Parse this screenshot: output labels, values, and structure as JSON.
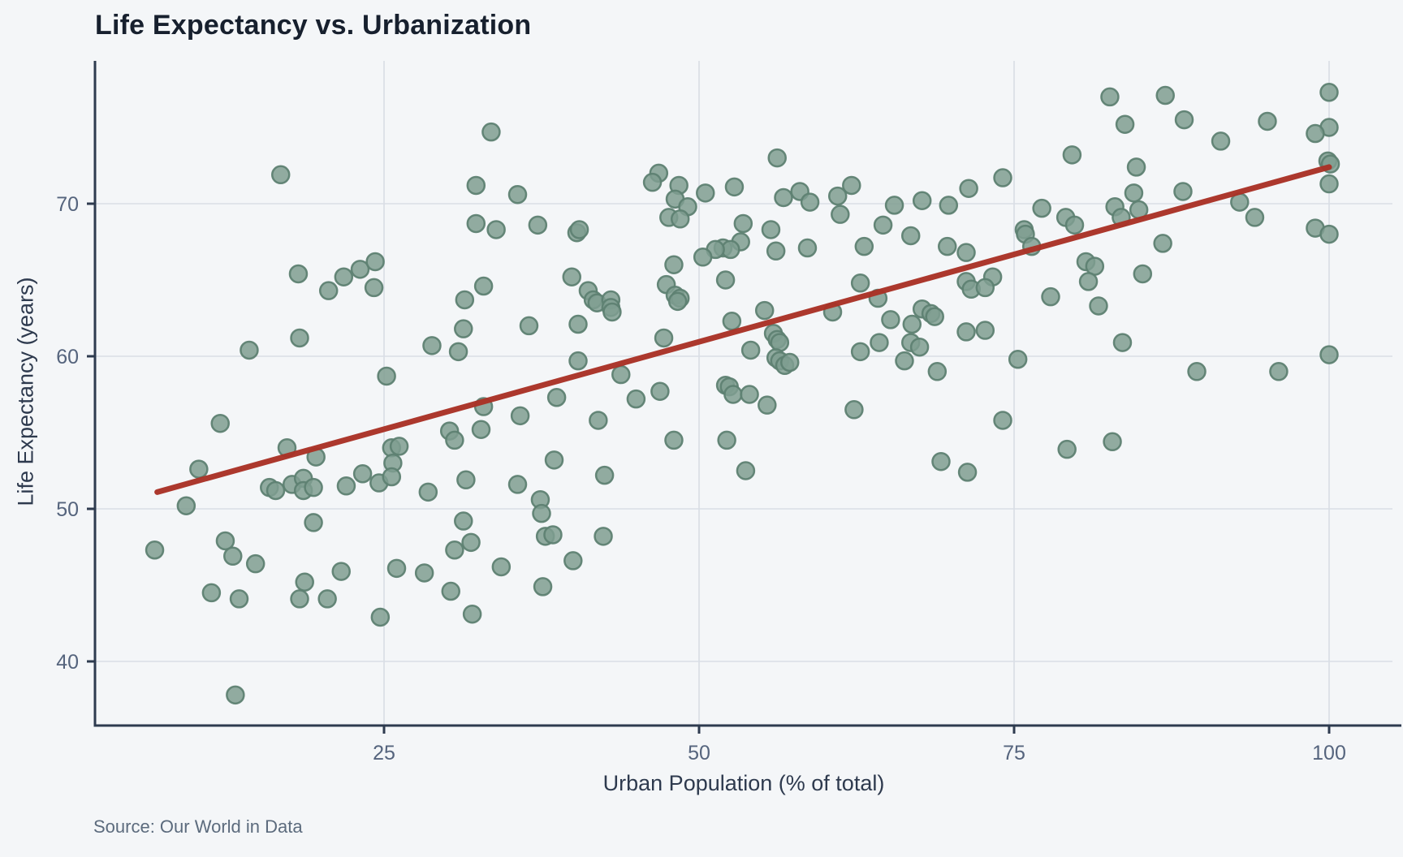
{
  "header": {
    "title": "Life Expectancy vs. Urbanization"
  },
  "footer": {
    "source": "Source: Our World in Data"
  },
  "chart_data": {
    "type": "scatter",
    "title": "Life Expectancy vs. Urbanization",
    "xlabel": "Urban Population (% of total)",
    "ylabel": "Life Expectancy (years)",
    "source": "Source: Our World in Data",
    "x_ticks": [
      25,
      50,
      75,
      100
    ],
    "y_ticks": [
      40,
      50,
      60,
      70
    ],
    "xlim": [
      2,
      104.5
    ],
    "ylim": [
      35.5,
      79.5
    ],
    "grid": true,
    "legend": false,
    "colors": {
      "background": "#f4f6f8",
      "grid": "#d9dee5",
      "axis": "#2e3b4f",
      "tick_label": "#55647d",
      "axis_label": "#2e3a4e",
      "title": "#17202e",
      "source": "#5c6b7d",
      "point_fill": "#7f9e90",
      "point_stroke": "#5e8172",
      "trend": "#a93226"
    },
    "trend_line": {
      "x1": 7.0,
      "y1": 51.1,
      "x2": 100.0,
      "y2": 72.4
    },
    "points": [
      [
        16.8,
        71.9
      ],
      [
        33.5,
        74.7
      ],
      [
        32.3,
        71.2
      ],
      [
        35.6,
        70.6
      ],
      [
        32.3,
        68.7
      ],
      [
        33.9,
        68.3
      ],
      [
        18.2,
        65.4
      ],
      [
        21.8,
        65.2
      ],
      [
        23.1,
        65.7
      ],
      [
        24.3,
        66.2
      ],
      [
        20.6,
        64.3
      ],
      [
        24.2,
        64.5
      ],
      [
        32.9,
        64.6
      ],
      [
        31.4,
        63.7
      ],
      [
        31.3,
        61.8
      ],
      [
        18.3,
        61.2
      ],
      [
        28.8,
        60.7
      ],
      [
        14.3,
        60.4
      ],
      [
        30.9,
        60.3
      ],
      [
        25.2,
        58.7
      ],
      [
        56.2,
        73.0
      ],
      [
        46.8,
        72.0
      ],
      [
        46.3,
        71.4
      ],
      [
        48.4,
        71.2
      ],
      [
        52.8,
        71.1
      ],
      [
        50.5,
        70.7
      ],
      [
        48.1,
        70.3
      ],
      [
        58.0,
        70.8
      ],
      [
        56.7,
        70.4
      ],
      [
        62.1,
        71.2
      ],
      [
        61.0,
        70.5
      ],
      [
        58.8,
        70.1
      ],
      [
        65.5,
        69.9
      ],
      [
        67.7,
        70.2
      ],
      [
        69.8,
        69.9
      ],
      [
        49.1,
        69.8
      ],
      [
        47.6,
        69.1
      ],
      [
        48.5,
        69.0
      ],
      [
        61.2,
        69.3
      ],
      [
        37.2,
        68.6
      ],
      [
        40.3,
        68.1
      ],
      [
        40.5,
        68.3
      ],
      [
        53.5,
        68.7
      ],
      [
        64.6,
        68.6
      ],
      [
        55.7,
        68.3
      ],
      [
        63.1,
        67.2
      ],
      [
        66.8,
        67.9
      ],
      [
        69.7,
        67.2
      ],
      [
        53.3,
        67.5
      ],
      [
        51.9,
        67.1
      ],
      [
        52.5,
        67.0
      ],
      [
        51.3,
        67.0
      ],
      [
        50.3,
        66.5
      ],
      [
        48.0,
        66.0
      ],
      [
        58.6,
        67.1
      ],
      [
        56.1,
        66.9
      ],
      [
        52.1,
        65.0
      ],
      [
        39.9,
        65.2
      ],
      [
        62.8,
        64.8
      ],
      [
        47.4,
        64.7
      ],
      [
        48.1,
        64.0
      ],
      [
        48.5,
        63.8
      ],
      [
        48.3,
        63.6
      ],
      [
        41.2,
        64.3
      ],
      [
        41.6,
        63.7
      ],
      [
        41.9,
        63.5
      ],
      [
        43.0,
        63.7
      ],
      [
        43.0,
        63.2
      ],
      [
        43.1,
        62.9
      ],
      [
        40.4,
        62.1
      ],
      [
        36.5,
        62.0
      ],
      [
        55.2,
        63.0
      ],
      [
        60.6,
        62.9
      ],
      [
        64.2,
        63.8
      ],
      [
        52.6,
        62.3
      ],
      [
        65.2,
        62.4
      ],
      [
        55.9,
        61.5
      ],
      [
        56.2,
        61.1
      ],
      [
        56.4,
        60.9
      ],
      [
        47.2,
        61.2
      ],
      [
        66.9,
        62.1
      ],
      [
        67.7,
        63.1
      ],
      [
        68.4,
        62.8
      ],
      [
        68.7,
        62.6
      ],
      [
        66.8,
        60.9
      ],
      [
        67.5,
        60.6
      ],
      [
        64.3,
        60.9
      ],
      [
        62.8,
        60.3
      ],
      [
        54.1,
        60.4
      ],
      [
        40.4,
        59.7
      ],
      [
        43.8,
        58.8
      ],
      [
        56.1,
        59.9
      ],
      [
        56.4,
        59.7
      ],
      [
        56.8,
        59.4
      ],
      [
        57.2,
        59.6
      ],
      [
        66.3,
        59.7
      ],
      [
        68.9,
        59.0
      ],
      [
        82.6,
        77.0
      ],
      [
        87.0,
        77.1
      ],
      [
        100.0,
        77.3
      ],
      [
        88.5,
        75.5
      ],
      [
        95.1,
        75.4
      ],
      [
        100.0,
        75.0
      ],
      [
        98.9,
        74.6
      ],
      [
        83.8,
        75.2
      ],
      [
        91.4,
        74.1
      ],
      [
        79.6,
        73.2
      ],
      [
        99.9,
        72.8
      ],
      [
        100.1,
        72.6
      ],
      [
        84.7,
        72.4
      ],
      [
        74.1,
        71.7
      ],
      [
        71.4,
        71.0
      ],
      [
        100.0,
        71.3
      ],
      [
        84.5,
        70.7
      ],
      [
        88.4,
        70.8
      ],
      [
        92.9,
        70.1
      ],
      [
        77.2,
        69.7
      ],
      [
        83.0,
        69.8
      ],
      [
        84.9,
        69.6
      ],
      [
        83.5,
        69.1
      ],
      [
        79.1,
        69.1
      ],
      [
        79.8,
        68.6
      ],
      [
        94.1,
        69.1
      ],
      [
        98.9,
        68.4
      ],
      [
        75.8,
        68.3
      ],
      [
        75.9,
        68.0
      ],
      [
        76.4,
        67.2
      ],
      [
        86.8,
        67.4
      ],
      [
        71.2,
        66.8
      ],
      [
        80.7,
        66.2
      ],
      [
        81.4,
        65.9
      ],
      [
        80.9,
        64.9
      ],
      [
        85.2,
        65.4
      ],
      [
        73.3,
        65.2
      ],
      [
        71.2,
        64.9
      ],
      [
        71.6,
        64.4
      ],
      [
        72.7,
        64.5
      ],
      [
        77.9,
        63.9
      ],
      [
        81.7,
        63.3
      ],
      [
        100.0,
        60.1
      ],
      [
        100.0,
        68.0
      ],
      [
        75.3,
        59.8
      ],
      [
        83.6,
        60.9
      ],
      [
        89.5,
        59.0
      ],
      [
        96.0,
        59.0
      ],
      [
        71.2,
        61.6
      ],
      [
        72.7,
        61.7
      ],
      [
        12.0,
        55.6
      ],
      [
        10.3,
        52.6
      ],
      [
        17.3,
        54.0
      ],
      [
        19.6,
        53.4
      ],
      [
        9.3,
        50.2
      ],
      [
        15.9,
        51.4
      ],
      [
        16.4,
        51.2
      ],
      [
        17.7,
        51.6
      ],
      [
        18.6,
        52.0
      ],
      [
        18.6,
        51.2
      ],
      [
        19.4,
        51.4
      ],
      [
        22.0,
        51.5
      ],
      [
        23.3,
        52.3
      ],
      [
        24.6,
        51.7
      ],
      [
        25.6,
        54.0
      ],
      [
        26.2,
        54.1
      ],
      [
        25.7,
        53.0
      ],
      [
        25.6,
        52.1
      ],
      [
        28.5,
        51.1
      ],
      [
        30.2,
        55.1
      ],
      [
        30.6,
        54.5
      ],
      [
        31.5,
        51.9
      ],
      [
        32.7,
        55.2
      ],
      [
        32.9,
        56.7
      ],
      [
        31.3,
        49.2
      ],
      [
        31.9,
        47.8
      ],
      [
        30.6,
        47.3
      ],
      [
        19.4,
        49.1
      ],
      [
        12.4,
        47.9
      ],
      [
        13.0,
        46.9
      ],
      [
        6.8,
        47.3
      ],
      [
        14.8,
        46.4
      ],
      [
        18.7,
        45.2
      ],
      [
        21.6,
        45.9
      ],
      [
        11.3,
        44.5
      ],
      [
        13.5,
        44.1
      ],
      [
        18.3,
        44.1
      ],
      [
        20.5,
        44.1
      ],
      [
        24.7,
        42.9
      ],
      [
        30.3,
        44.6
      ],
      [
        32.0,
        43.1
      ],
      [
        34.3,
        46.2
      ],
      [
        13.2,
        37.8
      ],
      [
        26.0,
        46.1
      ],
      [
        28.2,
        45.8
      ],
      [
        38.7,
        57.3
      ],
      [
        45.0,
        57.2
      ],
      [
        46.9,
        57.7
      ],
      [
        35.8,
        56.1
      ],
      [
        42.0,
        55.8
      ],
      [
        48.0,
        54.5
      ],
      [
        52.2,
        54.5
      ],
      [
        38.5,
        53.2
      ],
      [
        42.5,
        52.2
      ],
      [
        53.7,
        52.5
      ],
      [
        35.6,
        51.6
      ],
      [
        37.4,
        50.6
      ],
      [
        37.5,
        49.7
      ],
      [
        37.8,
        48.2
      ],
      [
        38.4,
        48.3
      ],
      [
        42.4,
        48.2
      ],
      [
        40.0,
        46.6
      ],
      [
        37.6,
        44.9
      ],
      [
        52.1,
        58.1
      ],
      [
        52.4,
        58.0
      ],
      [
        52.7,
        57.5
      ],
      [
        54.0,
        57.5
      ],
      [
        55.4,
        56.8
      ],
      [
        62.3,
        56.5
      ],
      [
        69.2,
        53.1
      ],
      [
        74.1,
        55.8
      ],
      [
        79.2,
        53.9
      ],
      [
        82.8,
        54.4
      ],
      [
        71.3,
        52.4
      ]
    ]
  }
}
